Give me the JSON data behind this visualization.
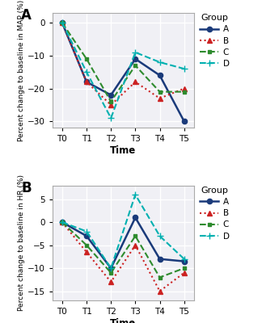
{
  "time_labels": [
    "T0",
    "T1",
    "T2",
    "T3",
    "T4",
    "T5"
  ],
  "panel_A": {
    "title": "A",
    "ylabel": "Percent change to baseline in MAP (%)",
    "ylim": [
      -32,
      3
    ],
    "yticks": [
      0,
      -10,
      -20,
      -30
    ],
    "series": {
      "A": [
        0,
        -18,
        -22,
        -11,
        -16,
        -30
      ],
      "B": [
        0,
        -18,
        -25,
        -18,
        -23,
        -20
      ],
      "C": [
        0,
        -11,
        -24,
        -13,
        -21,
        -21
      ],
      "D": [
        0,
        -15,
        -29,
        -9,
        -12,
        -14
      ]
    }
  },
  "panel_B": {
    "title": "B",
    "ylabel": "Percent change to baseline in HR (%)",
    "ylim": [
      -17,
      8
    ],
    "yticks": [
      5,
      0,
      -5,
      -10,
      -15
    ],
    "series": {
      "A": [
        0,
        -3,
        -10,
        1,
        -8,
        -8.5
      ],
      "B": [
        0,
        -6.5,
        -13,
        -5,
        -15,
        -11
      ],
      "C": [
        0,
        -5,
        -11,
        -3,
        -12,
        -10
      ],
      "D": [
        0,
        -2,
        -10,
        6,
        -3,
        -8
      ]
    }
  },
  "group_colors": {
    "A": "#1a3a7a",
    "B": "#cc2222",
    "C": "#2e8b2e",
    "D": "#00b0b0"
  },
  "xlabel": "Time",
  "fig_facecolor": "#ffffff",
  "axes_facecolor": "#f0f0f5",
  "grid_color": "#ffffff",
  "grid_linewidth": 1.0,
  "spine_color": "#aaaaaa"
}
